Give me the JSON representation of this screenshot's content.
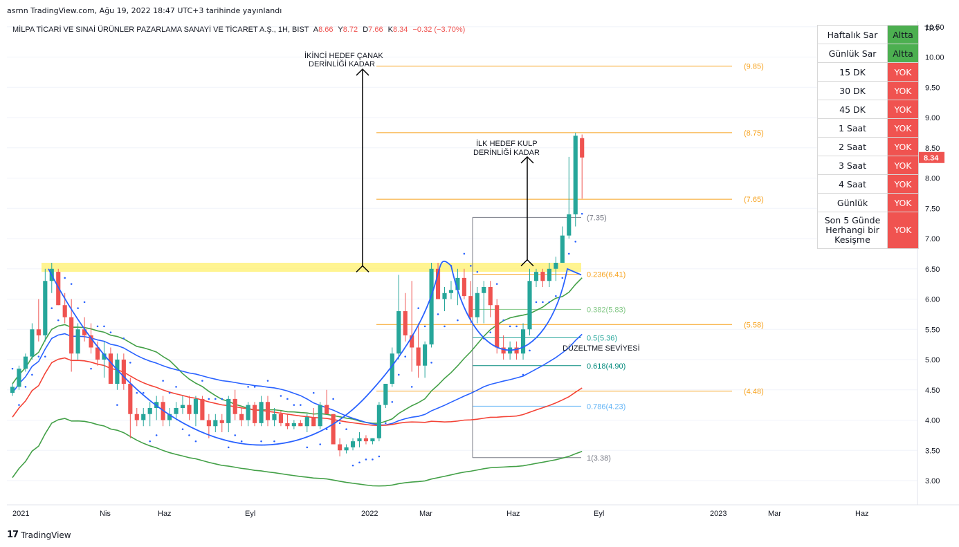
{
  "caption": "asrnn TradingView.com, Ağu 19, 2022 18:47 UTC+3 tarihinde yayınlandı",
  "footer": {
    "brand": "TradingView",
    "logo": "17"
  },
  "legend": {
    "symbol": "MİLPA TİCARİ VE SINAİ ÜRÜNLER PAZARLAMA SANAYİ VE TİCARET A.Ş., 1H, BIST",
    "o_label": "A",
    "o": "8.66",
    "h_label": "Y",
    "h": "8.72",
    "l_label": "D",
    "l": "7.66",
    "c_label": "K",
    "c": "8.34",
    "change": "−0.32 (−3.70%)"
  },
  "table": [
    {
      "label": "Haftalık Sar",
      "value": "Altta",
      "status": "green"
    },
    {
      "label": "Günlük Sar",
      "value": "Altta",
      "status": "green"
    },
    {
      "label": "15 DK",
      "value": "YOK",
      "status": "red"
    },
    {
      "label": "30 DK",
      "value": "YOK",
      "status": "red"
    },
    {
      "label": "45 DK",
      "value": "YOK",
      "status": "red"
    },
    {
      "label": "1 Saat",
      "value": "YOK",
      "status": "red"
    },
    {
      "label": "2 Saat",
      "value": "YOK",
      "status": "red"
    },
    {
      "label": "3 Saat",
      "value": "YOK",
      "status": "red"
    },
    {
      "label": "4 Saat",
      "value": "YOK",
      "status": "red"
    },
    {
      "label": "Günlük",
      "value": "YOK",
      "status": "red"
    },
    {
      "label": "Son 5 Günde Herhangi bir Kesişme",
      "value": "YOK",
      "status": "red",
      "tall": true
    }
  ],
  "colors": {
    "up": "#26a69a",
    "down": "#ef5350",
    "fib_orange": "#f7a11a",
    "ma_blue": "#2962ff",
    "ma_red": "#f44336",
    "ma_green": "#43a047",
    "highlight": "#fff176",
    "price_tag": "#ef5350"
  },
  "chart_data": {
    "type": "candlestick",
    "currency": "TRY",
    "ylim": [
      2.6,
      10.6
    ],
    "y_ticks": [
      "3.00",
      "3.50",
      "4.00",
      "4.50",
      "5.00",
      "5.50",
      "6.00",
      "6.50",
      "7.00",
      "7.50",
      "8.00",
      "8.50",
      "9.00",
      "9.50",
      "10.00",
      "10.50"
    ],
    "x_ticks": [
      {
        "label": "2021",
        "t": 0
      },
      {
        "label": "Nis",
        "t": 3
      },
      {
        "label": "Haz",
        "t": 5
      },
      {
        "label": "Eyl",
        "t": 8
      },
      {
        "label": "2022",
        "t": 12
      },
      {
        "label": "Mar",
        "t": 14
      },
      {
        "label": "Haz",
        "t": 17
      },
      {
        "label": "Eyl",
        "t": 20
      },
      {
        "label": "2023",
        "t": 24
      },
      {
        "label": "Mar",
        "t": 26
      },
      {
        "label": "Haz",
        "t": 29
      }
    ],
    "last_price": "8.34",
    "candles": [
      [
        4.45,
        4.6,
        4.4,
        4.55
      ],
      [
        4.55,
        4.9,
        4.5,
        4.85
      ],
      [
        4.85,
        5.1,
        4.8,
        5.05
      ],
      [
        5.05,
        5.6,
        5.0,
        5.5
      ],
      [
        5.5,
        6.0,
        5.3,
        5.4
      ],
      [
        5.4,
        6.5,
        5.3,
        6.3
      ],
      [
        6.3,
        6.6,
        6.1,
        6.5
      ],
      [
        6.45,
        6.5,
        5.9,
        5.9
      ],
      [
        5.9,
        6.1,
        5.6,
        5.7
      ],
      [
        5.7,
        6.0,
        4.8,
        5.1
      ],
      [
        5.1,
        5.6,
        5.0,
        5.5
      ],
      [
        5.5,
        5.7,
        5.3,
        5.4
      ],
      [
        5.4,
        5.6,
        5.1,
        5.2
      ],
      [
        5.2,
        5.3,
        4.9,
        5.0
      ],
      [
        5.0,
        5.3,
        4.7,
        5.1
      ],
      [
        5.1,
        5.2,
        4.6,
        4.6
      ],
      [
        4.6,
        5.1,
        4.5,
        5.0
      ],
      [
        5.0,
        5.1,
        4.5,
        4.6
      ],
      [
        4.6,
        4.7,
        3.7,
        4.1
      ],
      [
        4.1,
        4.2,
        3.9,
        4.0
      ],
      [
        4.0,
        4.2,
        3.9,
        4.1
      ],
      [
        4.1,
        4.3,
        3.9,
        4.2
      ],
      [
        4.2,
        4.4,
        4.0,
        4.3
      ],
      [
        4.3,
        4.4,
        3.9,
        4.0
      ],
      [
        4.0,
        4.2,
        3.9,
        4.1
      ],
      [
        4.1,
        4.3,
        4.0,
        4.2
      ],
      [
        4.2,
        4.4,
        4.1,
        4.25
      ],
      [
        4.25,
        4.4,
        4.0,
        4.1
      ],
      [
        4.1,
        4.4,
        3.9,
        4.35
      ],
      [
        4.35,
        4.4,
        4.0,
        4.0
      ],
      [
        4.0,
        4.1,
        3.7,
        3.9
      ],
      [
        3.9,
        4.1,
        3.8,
        4.0
      ],
      [
        4.0,
        4.1,
        3.8,
        3.95
      ],
      [
        3.95,
        4.4,
        3.8,
        4.35
      ],
      [
        4.35,
        4.5,
        4.0,
        4.1
      ],
      [
        4.1,
        4.2,
        3.9,
        4.0
      ],
      [
        4.0,
        4.3,
        3.9,
        4.25
      ],
      [
        4.25,
        4.3,
        3.9,
        3.95
      ],
      [
        3.95,
        4.4,
        3.9,
        4.3
      ],
      [
        4.3,
        4.4,
        3.9,
        4.0
      ],
      [
        4.0,
        4.2,
        3.9,
        4.1
      ],
      [
        4.1,
        4.15,
        3.9,
        3.95
      ],
      [
        3.95,
        4.1,
        3.85,
        3.9
      ],
      [
        3.9,
        4.0,
        3.85,
        3.95
      ],
      [
        3.95,
        4.0,
        3.9,
        3.9
      ],
      [
        3.9,
        4.1,
        3.8,
        4.05
      ],
      [
        4.05,
        4.2,
        3.9,
        3.9
      ],
      [
        3.9,
        4.3,
        3.85,
        4.25
      ],
      [
        4.25,
        4.5,
        4.1,
        4.1
      ],
      [
        4.1,
        4.1,
        3.6,
        3.6
      ],
      [
        3.6,
        3.7,
        3.4,
        3.5
      ],
      [
        3.5,
        3.6,
        3.45,
        3.55
      ],
      [
        3.55,
        3.7,
        3.5,
        3.65
      ],
      [
        3.65,
        3.8,
        3.55,
        3.7
      ],
      [
        3.7,
        3.75,
        3.6,
        3.65
      ],
      [
        3.65,
        3.7,
        3.6,
        3.7
      ],
      [
        3.7,
        4.3,
        3.65,
        4.25
      ],
      [
        4.25,
        4.6,
        4.2,
        4.6
      ],
      [
        4.6,
        5.2,
        4.55,
        5.1
      ],
      [
        5.1,
        6.4,
        5.0,
        5.8
      ],
      [
        5.8,
        6.1,
        5.3,
        5.4
      ],
      [
        5.4,
        6.3,
        4.8,
        5.2
      ],
      [
        5.2,
        5.6,
        4.7,
        4.9
      ],
      [
        4.9,
        5.3,
        4.7,
        5.25
      ],
      [
        5.25,
        6.6,
        5.2,
        6.5
      ],
      [
        6.5,
        6.6,
        6.0,
        6.0
      ],
      [
        6.0,
        6.2,
        5.8,
        6.1
      ],
      [
        6.1,
        6.3,
        6.0,
        6.15
      ],
      [
        6.15,
        6.5,
        5.9,
        6.35
      ],
      [
        6.35,
        6.5,
        6.0,
        6.05
      ],
      [
        6.05,
        6.3,
        5.6,
        5.7
      ],
      [
        5.7,
        6.2,
        5.6,
        6.1
      ],
      [
        6.1,
        6.3,
        5.6,
        6.2
      ],
      [
        6.2,
        6.3,
        5.7,
        5.9
      ],
      [
        5.9,
        6.0,
        5.1,
        5.2
      ],
      [
        5.2,
        5.4,
        5.0,
        5.1
      ],
      [
        5.1,
        5.3,
        5.0,
        5.2
      ],
      [
        5.2,
        5.3,
        5.0,
        5.1
      ],
      [
        5.1,
        5.6,
        5.0,
        5.5
      ],
      [
        5.5,
        6.5,
        5.4,
        6.3
      ],
      [
        6.3,
        6.5,
        6.2,
        6.45
      ],
      [
        6.45,
        6.5,
        6.2,
        6.3
      ],
      [
        6.3,
        6.6,
        6.2,
        6.5
      ],
      [
        6.5,
        6.7,
        6.3,
        6.6
      ],
      [
        6.6,
        7.2,
        6.6,
        7.05
      ],
      [
        7.05,
        8.35,
        7.0,
        7.4
      ],
      [
        7.4,
        8.75,
        7.2,
        8.7
      ],
      [
        8.66,
        8.72,
        7.66,
        8.34
      ]
    ],
    "fib_levels": [
      {
        "label": "0.236(6.41)",
        "value": 6.41,
        "color": "#f7a11a"
      },
      {
        "label": "0.382(5.83)",
        "value": 5.83,
        "color": "#81c784"
      },
      {
        "label": "0.5(5.36)",
        "value": 5.36,
        "color": "#26a69a"
      },
      {
        "label": "0.618(4.90)",
        "value": 4.9,
        "color": "#00897b"
      },
      {
        "label": "0.786(4.23)",
        "value": 4.23,
        "color": "#64b5f6"
      },
      {
        "label": "1(3.38)",
        "value": 3.38,
        "color": "#787b86"
      },
      {
        "label": "(7.35)",
        "value": 7.35,
        "color": "#787b86"
      }
    ],
    "target_levels": [
      {
        "label": "(9.85)",
        "value": 9.85
      },
      {
        "label": "(8.75)",
        "value": 8.75
      },
      {
        "label": "(7.65)",
        "value": 7.65
      },
      {
        "label": "(5.58)",
        "value": 5.58
      },
      {
        "label": "(4.48)",
        "value": 4.48
      }
    ],
    "resistance_zone": [
      6.45,
      6.6
    ],
    "annotations": [
      {
        "text": "İKİNCİ HEDEF ÇANAK",
        "text2": "DERİNLİĞİ KADAR"
      },
      {
        "text": "İLK HEDEF KULP",
        "text2": "DERİNLİĞİ KADAR"
      },
      {
        "text": "DÜZELTME SEVİYESİ"
      }
    ]
  }
}
